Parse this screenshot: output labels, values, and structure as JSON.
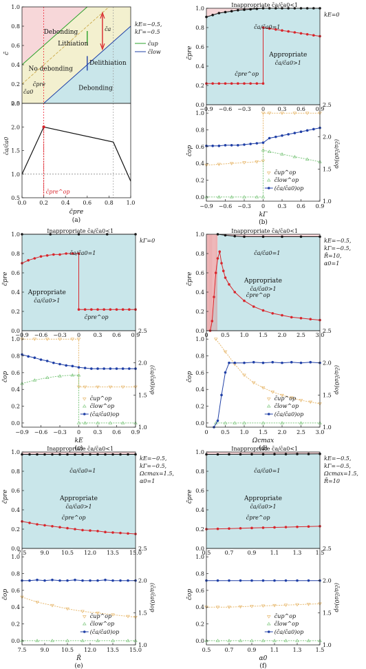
{
  "colors": {
    "pink": "#f7d7d9",
    "yellow": "#f3f0cf",
    "blue": "#c9e6ea",
    "red": "#d8262c",
    "darkred": "#b31b1b",
    "green": "#2aa12a",
    "navy": "#1f3fa6",
    "orange": "#e7b86d",
    "lgreen": "#7fc77f",
    "black": "#111111"
  },
  "texts": {
    "inappropriate": "Inappropriate c̄a/c̄a0<1",
    "ratio_one": "c̄a/c̄a0=1",
    "appropriate1": "Appropriate",
    "appropriate2": "c̄a/c̄a0>1",
    "cpre_op": "c̄pre^op",
    "ylab_pre": "c̄pre",
    "ylab_op": "c̄op",
    "ylab_right": "(c̄a/c̄a0)op",
    "leg_up": "c̄up^op",
    "leg_low": "c̄low^op",
    "leg_ratio": "(c̄a/c̄a0)op"
  },
  "chart_data": [
    {
      "id": "a",
      "type": "line",
      "caption": "(a)",
      "top_panel": {
        "ylabel": "c̄",
        "region_labels": [
          "Debonding",
          "Lithiation",
          "No debonding",
          "Delithiation",
          "Debonding"
        ],
        "params": [
          "kE=−0.5,",
          "kΓ=−0.5"
        ],
        "legend": [
          "c̄up",
          "c̄low"
        ],
        "annotations": [
          "c̄a0",
          "c̄pre",
          "c̄a"
        ],
        "yticks": [
          "0.0",
          "0.2",
          "0.4",
          "0.6",
          "0.8",
          "1.0"
        ],
        "ylim": [
          0,
          1
        ]
      },
      "bottom_panel": {
        "ylabel": "c̄a/c̄a0",
        "xlabel": "c̄pre",
        "xlim": [
          0,
          1
        ],
        "ylim": [
          0.5,
          2.5
        ],
        "xticks": [
          "0.0",
          "0.2",
          "0.4",
          "0.6",
          "0.8",
          "1.0"
        ],
        "yticks": [
          "0.5",
          "1.0",
          "1.5",
          "2.0",
          "2.5"
        ],
        "x": [
          0.0,
          0.2,
          0.84,
          1.0
        ],
        "values": [
          1.0,
          2.0,
          1.68,
          0.85
        ],
        "annotation": "c̄pre^op"
      }
    },
    {
      "id": "b",
      "type": "line",
      "caption": "(b)",
      "param_label": "kE=0",
      "xlabel": "kΓ",
      "xlim": [
        -0.9,
        0.9
      ],
      "xticks": [
        "−0.9",
        "−0.6",
        "−0.3",
        "0",
        "0.3",
        "0.6",
        "0.9"
      ],
      "top_yticks": [
        "0.0",
        "0.2",
        "0.4",
        "0.6",
        "0.8",
        "1.0"
      ],
      "op_yticks": [
        "0.0",
        "0.2",
        "0.4",
        "0.6",
        "0.8",
        "1.0"
      ],
      "right_yticks": [
        "1.0",
        "1.5",
        "2.0",
        "2.5"
      ],
      "boundary": {
        "x": [
          -0.9,
          -0.8,
          -0.7,
          -0.6,
          -0.5,
          -0.4,
          -0.3,
          -0.2,
          -0.1,
          0.0,
          0.1,
          0.2,
          0.3,
          0.4,
          0.5,
          0.6,
          0.7,
          0.8,
          0.9
        ],
        "values": [
          0.91,
          0.93,
          0.95,
          0.96,
          0.97,
          0.98,
          0.985,
          0.99,
          0.995,
          1.0,
          1.0,
          1.0,
          1.0,
          1.0,
          1.0,
          1.0,
          1.0,
          1.0,
          1.0
        ]
      },
      "cpre_op": {
        "x": [
          -0.9,
          -0.8,
          -0.7,
          -0.6,
          -0.5,
          -0.4,
          -0.3,
          -0.2,
          -0.1,
          0.0,
          0.0,
          0.1,
          0.2,
          0.3,
          0.4,
          0.5,
          0.6,
          0.7,
          0.8,
          0.9
        ],
        "values": [
          0.22,
          0.22,
          0.22,
          0.22,
          0.22,
          0.22,
          0.22,
          0.22,
          0.22,
          0.22,
          0.8,
          0.79,
          0.78,
          0.77,
          0.76,
          0.75,
          0.74,
          0.73,
          0.72,
          0.71
        ]
      },
      "cup_op": {
        "x": [
          -0.9,
          -0.7,
          -0.5,
          -0.3,
          -0.1,
          0.0,
          0.0,
          0.1,
          0.3,
          0.5,
          0.7,
          0.9
        ],
        "values": [
          0.38,
          0.39,
          0.4,
          0.41,
          0.42,
          0.43,
          1.0,
          1.0,
          1.0,
          1.0,
          1.0,
          1.0
        ]
      },
      "clow_op": {
        "x": [
          -0.9,
          -0.7,
          -0.5,
          -0.3,
          -0.1,
          0.0,
          0.0,
          0.1,
          0.3,
          0.5,
          0.7,
          0.9
        ],
        "values": [
          0.0,
          0.0,
          0.0,
          0.0,
          0.0,
          0.0,
          0.56,
          0.54,
          0.51,
          0.48,
          0.45,
          0.42
        ]
      },
      "ratio_op": {
        "x": [
          -0.9,
          -0.8,
          -0.7,
          -0.6,
          -0.5,
          -0.4,
          -0.3,
          -0.2,
          -0.1,
          0.0,
          0.1,
          0.2,
          0.3,
          0.4,
          0.5,
          0.6,
          0.7,
          0.8,
          0.9
        ],
        "values": [
          1.86,
          1.86,
          1.86,
          1.87,
          1.87,
          1.87,
          1.88,
          1.89,
          1.9,
          1.91,
          1.98,
          2.0,
          2.02,
          2.04,
          2.06,
          2.08,
          2.1,
          2.12,
          2.14
        ]
      }
    },
    {
      "id": "c",
      "type": "line",
      "caption": "(c)",
      "param_label": "kΓ=0",
      "xlabel": "kE",
      "xlim": [
        -0.9,
        0.9
      ],
      "xticks": [
        "−0.9",
        "−0.6",
        "−0.3",
        "0",
        "0.3",
        "0.6",
        "0.9"
      ],
      "top_yticks": [
        "0.0",
        "0.2",
        "0.4",
        "0.6",
        "0.8",
        "1.0"
      ],
      "op_yticks": [
        "0.0",
        "0.2",
        "0.4",
        "0.6",
        "0.8",
        "1.0"
      ],
      "right_yticks": [
        "1.0",
        "1.5",
        "2.0",
        "2.5"
      ],
      "boundary": {
        "x": [
          -0.9,
          -0.45,
          0.0,
          0.45,
          0.9
        ],
        "values": [
          1.0,
          1.0,
          1.0,
          1.0,
          1.0
        ]
      },
      "cpre_op": {
        "x": [
          -0.9,
          -0.8,
          -0.7,
          -0.6,
          -0.5,
          -0.4,
          -0.3,
          -0.2,
          -0.1,
          0.0,
          0.0,
          0.1,
          0.2,
          0.3,
          0.4,
          0.5,
          0.6,
          0.7,
          0.8,
          0.9
        ],
        "values": [
          0.7,
          0.73,
          0.75,
          0.77,
          0.78,
          0.79,
          0.79,
          0.8,
          0.8,
          0.8,
          0.22,
          0.22,
          0.22,
          0.22,
          0.22,
          0.22,
          0.22,
          0.22,
          0.22,
          0.22
        ]
      },
      "cup_op": {
        "x": [
          -0.9,
          -0.7,
          -0.5,
          -0.3,
          -0.1,
          0.0,
          0.0,
          0.1,
          0.3,
          0.5,
          0.7,
          0.9
        ],
        "values": [
          1.0,
          1.0,
          1.0,
          1.0,
          1.0,
          1.0,
          0.43,
          0.43,
          0.43,
          0.43,
          0.43,
          0.43
        ]
      },
      "clow_op": {
        "x": [
          -0.9,
          -0.7,
          -0.5,
          -0.3,
          -0.1,
          0.0,
          0.0,
          0.1,
          0.3,
          0.5,
          0.7,
          0.9
        ],
        "values": [
          0.47,
          0.51,
          0.54,
          0.56,
          0.57,
          0.57,
          0.0,
          0.0,
          0.0,
          0.0,
          0.0,
          0.0
        ]
      },
      "ratio_op": {
        "x": [
          -0.9,
          -0.8,
          -0.7,
          -0.6,
          -0.5,
          -0.4,
          -0.3,
          -0.2,
          -0.1,
          0.0,
          0.1,
          0.2,
          0.3,
          0.4,
          0.5,
          0.6,
          0.7,
          0.8,
          0.9
        ],
        "values": [
          2.13,
          2.1,
          2.08,
          2.05,
          2.03,
          2.0,
          1.98,
          1.96,
          1.95,
          1.93,
          1.92,
          1.91,
          1.91,
          1.91,
          1.91,
          1.91,
          1.91,
          1.91,
          1.91
        ]
      }
    },
    {
      "id": "d",
      "type": "line",
      "caption": "(d)",
      "param_label": [
        "kE=−0.5,",
        "kΓ=−0.5,",
        "R̄=10,",
        "α0=1"
      ],
      "xlabel": "Ωcmax",
      "xlim": [
        0,
        3
      ],
      "xticks": [
        "0",
        "0.5",
        "1.0",
        "1.5",
        "2.0",
        "2.5",
        "3.0"
      ],
      "top_yticks": [
        "0.0",
        "0.2",
        "0.4",
        "0.6",
        "0.8",
        "1.0"
      ],
      "op_yticks": [
        "0.0",
        "0.2",
        "0.4",
        "0.6",
        "0.8",
        "1.0"
      ],
      "right_yticks": [
        "1.0",
        "1.5",
        "2.0",
        "2.5"
      ],
      "boundary": {
        "x": [
          0.3,
          0.5,
          0.75,
          1.0,
          1.5,
          2.0,
          2.5,
          3.0
        ],
        "values": [
          1.0,
          0.99,
          0.98,
          0.975,
          0.975,
          0.975,
          0.975,
          0.975
        ]
      },
      "cpre_op": {
        "x": [
          0.1,
          0.15,
          0.2,
          0.25,
          0.3,
          0.35,
          0.4,
          0.45,
          0.5,
          0.6,
          0.75,
          1.0,
          1.25,
          1.5,
          1.75,
          2.0,
          2.25,
          2.5,
          2.75,
          3.0
        ],
        "values": [
          0.0,
          0.1,
          0.35,
          0.6,
          0.75,
          0.82,
          0.7,
          0.62,
          0.55,
          0.48,
          0.4,
          0.31,
          0.25,
          0.21,
          0.18,
          0.16,
          0.14,
          0.13,
          0.12,
          0.11
        ]
      },
      "cup_op": {
        "x": [
          0.25,
          0.5,
          0.75,
          1.0,
          1.25,
          1.5,
          1.75,
          2.0,
          2.25,
          2.5,
          2.75,
          3.0
        ],
        "values": [
          1.0,
          0.85,
          0.7,
          0.57,
          0.48,
          0.42,
          0.37,
          0.33,
          0.3,
          0.27,
          0.25,
          0.23
        ]
      },
      "clow_op": {
        "x": [
          0.25,
          0.5,
          0.75,
          1.0,
          1.5,
          2.0,
          2.5,
          3.0
        ],
        "values": [
          0.0,
          0.0,
          0.0,
          0.0,
          0.0,
          0.0,
          0.0,
          0.0
        ]
      },
      "ratio_op": {
        "x": [
          0.2,
          0.3,
          0.4,
          0.5,
          0.6,
          0.75,
          1.0,
          1.25,
          1.5,
          1.75,
          2.0,
          2.25,
          2.5,
          2.75,
          3.0
        ],
        "values": [
          1.0,
          1.1,
          1.5,
          1.85,
          2.0,
          2.0,
          2.0,
          2.01,
          2.0,
          2.01,
          2.0,
          2.01,
          2.0,
          2.01,
          2.0
        ]
      }
    },
    {
      "id": "e",
      "type": "line",
      "caption": "(e)",
      "param_label": [
        "kE=−0.5,",
        "kΓ=−0.5,",
        "Ωcmax=1.5,",
        "α0=1"
      ],
      "xlabel": "R̄",
      "xlim": [
        7.5,
        15.0
      ],
      "xticks": [
        "7.5",
        "9.0",
        "10.5",
        "12.0",
        "13.5",
        "15.0"
      ],
      "top_yticks": [
        "0.0",
        "0.2",
        "0.4",
        "0.6",
        "0.8",
        "1.0"
      ],
      "op_yticks": [
        "0.0",
        "0.2",
        "0.4",
        "0.6",
        "0.8",
        "1.0"
      ],
      "right_yticks": [
        "1.0",
        "1.5",
        "2.0",
        "2.5"
      ],
      "boundary": {
        "x": [
          7.5,
          8.0,
          8.5,
          9.0,
          9.5,
          10.0,
          10.5,
          11.0,
          11.5,
          12.0,
          12.5,
          13.0,
          13.5,
          14.0,
          14.5,
          15.0
        ],
        "values": [
          0.975,
          0.975,
          0.975,
          0.975,
          0.975,
          0.975,
          0.975,
          0.975,
          0.975,
          0.975,
          0.975,
          0.975,
          0.975,
          0.975,
          0.975,
          0.975
        ]
      },
      "cpre_op": {
        "x": [
          7.5,
          8.0,
          8.5,
          9.0,
          9.5,
          10.0,
          10.5,
          11.0,
          11.5,
          12.0,
          12.5,
          13.0,
          13.5,
          14.0,
          14.5,
          15.0
        ],
        "values": [
          0.28,
          0.265,
          0.25,
          0.24,
          0.23,
          0.22,
          0.21,
          0.2,
          0.19,
          0.185,
          0.18,
          0.17,
          0.165,
          0.16,
          0.155,
          0.15
        ]
      },
      "cup_op": {
        "x": [
          7.5,
          8.5,
          9.5,
          10.5,
          11.5,
          12.5,
          13.5,
          14.5,
          15.0
        ],
        "values": [
          0.52,
          0.46,
          0.42,
          0.38,
          0.35,
          0.33,
          0.31,
          0.29,
          0.28
        ]
      },
      "clow_op": {
        "x": [
          7.5,
          8.5,
          9.5,
          10.5,
          11.5,
          12.5,
          13.5,
          14.5,
          15.0
        ],
        "values": [
          0.0,
          0.0,
          0.0,
          0.0,
          0.0,
          0.0,
          0.0,
          0.0,
          0.0
        ]
      },
      "ratio_op": {
        "x": [
          7.5,
          8.0,
          8.5,
          9.0,
          9.5,
          10.0,
          10.5,
          11.0,
          11.5,
          12.0,
          12.5,
          13.0,
          13.5,
          14.0,
          14.5,
          15.0
        ],
        "values": [
          2.0,
          2.0,
          2.01,
          2.0,
          2.01,
          2.0,
          2.0,
          2.01,
          2.0,
          2.0,
          2.0,
          2.01,
          2.0,
          2.0,
          2.0,
          2.0
        ]
      }
    },
    {
      "id": "f",
      "type": "line",
      "caption": "(f)",
      "param_label": [
        "kE=−0.5,",
        "kΓ=−0.5,",
        "Ωcmax=1.5,",
        "R̄=10"
      ],
      "xlabel": "α0",
      "xlim": [
        0.5,
        1.5
      ],
      "xticks": [
        "0.5",
        "0.7",
        "0.9",
        "1.1",
        "1.3",
        "1.5"
      ],
      "top_yticks": [
        "0.0",
        "0.2",
        "0.4",
        "0.6",
        "0.8",
        "1.0"
      ],
      "op_yticks": [
        "0.0",
        "0.2",
        "0.4",
        "0.6",
        "0.8",
        "1.0"
      ],
      "right_yticks": [
        "1.0",
        "1.5",
        "2.0",
        "2.5"
      ],
      "boundary": {
        "x": [
          0.5,
          0.6,
          0.7,
          0.8,
          0.9,
          1.0,
          1.1,
          1.2,
          1.3,
          1.4,
          1.5
        ],
        "values": [
          0.975,
          0.975,
          0.976,
          0.976,
          0.977,
          0.977,
          0.978,
          0.978,
          0.979,
          0.979,
          0.98
        ]
      },
      "cpre_op": {
        "x": [
          0.5,
          0.6,
          0.7,
          0.8,
          0.9,
          1.0,
          1.1,
          1.2,
          1.3,
          1.4,
          1.5
        ],
        "values": [
          0.2,
          0.203,
          0.206,
          0.209,
          0.212,
          0.215,
          0.218,
          0.221,
          0.224,
          0.227,
          0.23
        ]
      },
      "cup_op": {
        "x": [
          0.5,
          0.6,
          0.7,
          0.8,
          0.9,
          1.0,
          1.1,
          1.2,
          1.3,
          1.4,
          1.5
        ],
        "values": [
          0.4,
          0.4,
          0.4,
          0.405,
          0.41,
          0.415,
          0.42,
          0.425,
          0.43,
          0.435,
          0.44
        ]
      },
      "clow_op": {
        "x": [
          0.5,
          0.6,
          0.7,
          0.8,
          0.9,
          1.0,
          1.1,
          1.2,
          1.3,
          1.4,
          1.5
        ],
        "values": [
          0.0,
          0.0,
          0.0,
          0.0,
          0.0,
          0.0,
          0.0,
          0.0,
          0.0,
          0.0,
          0.0
        ]
      },
      "ratio_op": {
        "x": [
          0.5,
          0.6,
          0.7,
          0.8,
          0.9,
          1.0,
          1.1,
          1.2,
          1.3,
          1.4,
          1.5
        ],
        "values": [
          2.0,
          2.0,
          2.0,
          2.0,
          2.0,
          2.0,
          2.0,
          2.0,
          2.0,
          2.0,
          2.0
        ]
      }
    }
  ]
}
